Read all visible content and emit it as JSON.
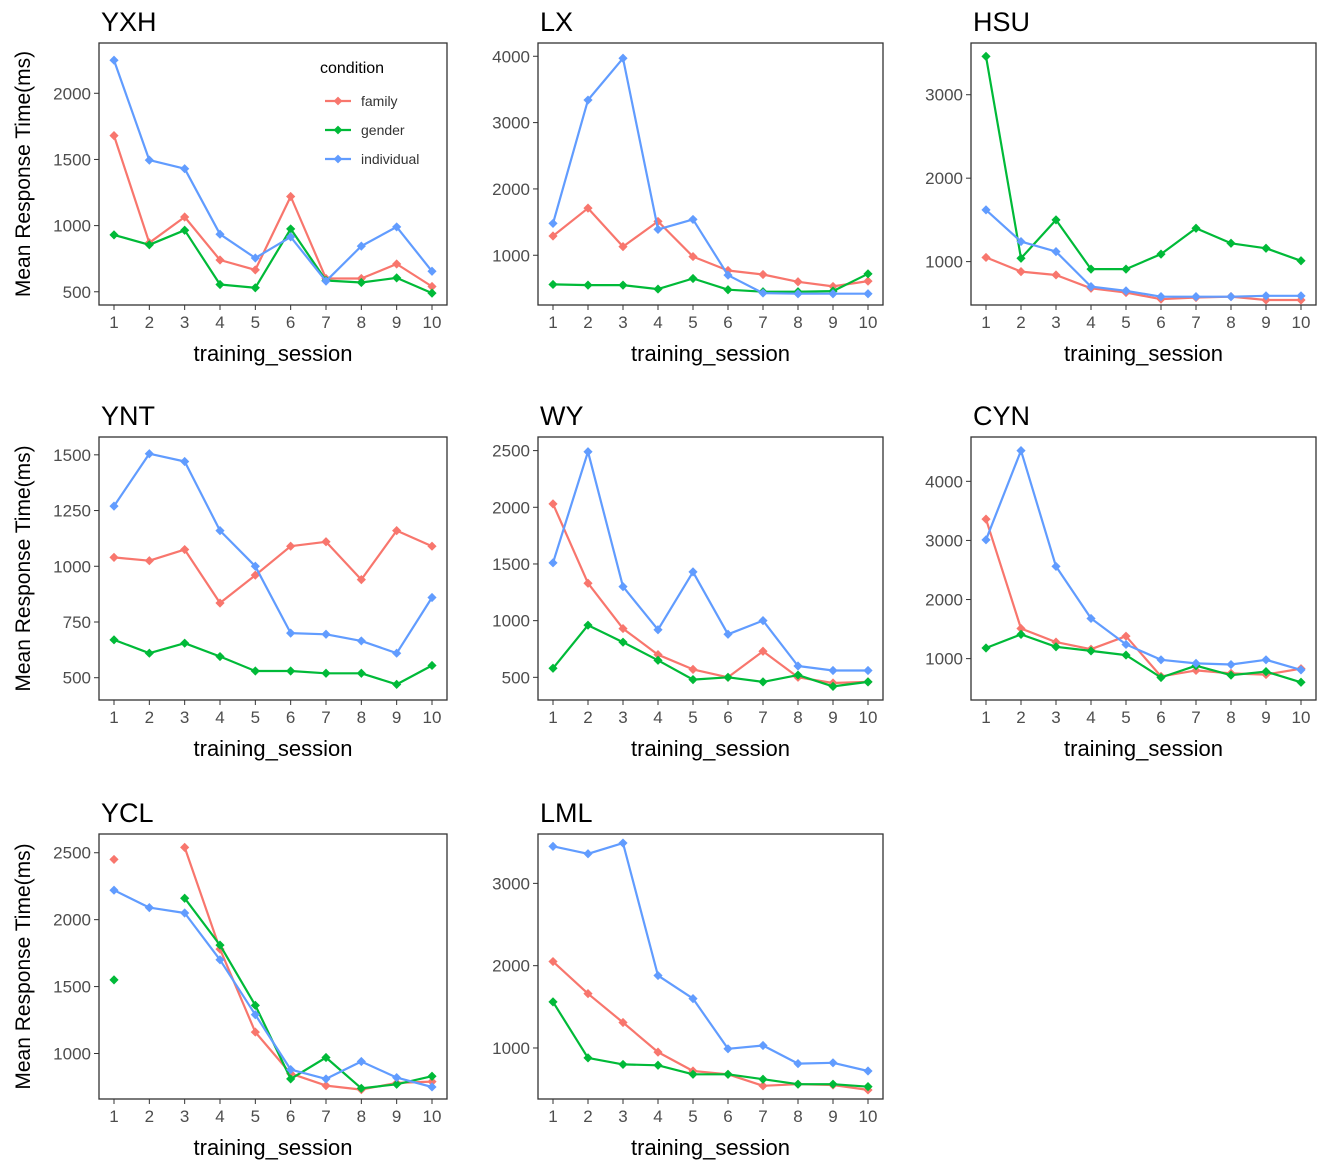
{
  "y_axis_label": "Mean Response Time(ms)",
  "legend": {
    "title": "condition",
    "items": [
      {
        "name": "family",
        "color": "#F8766D"
      },
      {
        "name": "gender",
        "color": "#00BA38"
      },
      {
        "name": "individual",
        "color": "#619CFF"
      }
    ]
  },
  "chart_data": [
    {
      "type": "line",
      "title": "YXH",
      "xlabel": "training_session",
      "ylabel": "Mean Response Time(ms)",
      "x": [
        1,
        2,
        3,
        4,
        5,
        6,
        7,
        8,
        9,
        10
      ],
      "ylim": [
        400,
        2380
      ],
      "yticks": [
        500,
        1000,
        1500,
        2000
      ],
      "series": [
        {
          "name": "family",
          "values": [
            1680,
            870,
            1065,
            740,
            665,
            1220,
            600,
            600,
            710,
            540
          ]
        },
        {
          "name": "gender",
          "values": [
            930,
            855,
            965,
            555,
            530,
            975,
            585,
            570,
            605,
            490
          ]
        },
        {
          "name": "individual",
          "values": [
            2250,
            1495,
            1430,
            935,
            755,
            915,
            580,
            845,
            990,
            655
          ]
        }
      ]
    },
    {
      "type": "line",
      "title": "LX",
      "xlabel": "training_session",
      "ylabel": "",
      "x": [
        1,
        2,
        3,
        4,
        5,
        6,
        7,
        8,
        9,
        10
      ],
      "ylim": [
        250,
        4200
      ],
      "yticks": [
        1000,
        2000,
        3000,
        4000
      ],
      "series": [
        {
          "name": "family",
          "values": [
            1290,
            1710,
            1130,
            1510,
            980,
            770,
            710,
            600,
            530,
            610
          ]
        },
        {
          "name": "gender",
          "values": [
            560,
            550,
            550,
            490,
            650,
            480,
            450,
            450,
            460,
            720
          ]
        },
        {
          "name": "individual",
          "values": [
            1480,
            3340,
            3970,
            1390,
            1540,
            700,
            430,
            420,
            420,
            420
          ]
        }
      ]
    },
    {
      "type": "line",
      "title": "HSU",
      "xlabel": "training_session",
      "ylabel": "",
      "x": [
        1,
        2,
        3,
        4,
        5,
        6,
        7,
        8,
        9,
        10
      ],
      "ylim": [
        480,
        3620
      ],
      "yticks": [
        1000,
        2000,
        3000
      ],
      "series": [
        {
          "name": "family",
          "values": [
            1050,
            880,
            840,
            680,
            630,
            550,
            570,
            580,
            540,
            540
          ]
        },
        {
          "name": "gender",
          "values": [
            3460,
            1040,
            1500,
            910,
            910,
            1090,
            1400,
            1220,
            1160,
            1010
          ]
        },
        {
          "name": "individual",
          "values": [
            1620,
            1240,
            1120,
            700,
            650,
            580,
            580,
            580,
            590,
            590
          ]
        }
      ]
    },
    {
      "type": "line",
      "title": "YNT",
      "xlabel": "training_session",
      "ylabel": "Mean Response Time(ms)",
      "x": [
        1,
        2,
        3,
        4,
        5,
        6,
        7,
        8,
        9,
        10
      ],
      "ylim": [
        400,
        1580
      ],
      "yticks": [
        500,
        750,
        1000,
        1250,
        1500
      ],
      "series": [
        {
          "name": "family",
          "values": [
            1040,
            1025,
            1075,
            835,
            960,
            1090,
            1110,
            940,
            1160,
            1090
          ]
        },
        {
          "name": "gender",
          "values": [
            670,
            610,
            655,
            595,
            530,
            530,
            520,
            520,
            470,
            555
          ]
        },
        {
          "name": "individual",
          "values": [
            1270,
            1505,
            1470,
            1160,
            1000,
            700,
            695,
            665,
            610,
            860
          ]
        }
      ]
    },
    {
      "type": "line",
      "title": "WY",
      "xlabel": "training_session",
      "ylabel": "",
      "x": [
        1,
        2,
        3,
        4,
        5,
        6,
        7,
        8,
        9,
        10
      ],
      "ylim": [
        300,
        2620
      ],
      "yticks": [
        500,
        1000,
        1500,
        2000,
        2500
      ],
      "series": [
        {
          "name": "family",
          "values": [
            2030,
            1330,
            930,
            700,
            570,
            500,
            730,
            500,
            450,
            460
          ]
        },
        {
          "name": "gender",
          "values": [
            580,
            960,
            810,
            650,
            480,
            500,
            460,
            520,
            420,
            460
          ]
        },
        {
          "name": "individual",
          "values": [
            1510,
            2490,
            1300,
            920,
            1430,
            880,
            1000,
            600,
            560,
            560
          ]
        }
      ]
    },
    {
      "type": "line",
      "title": "CYN",
      "xlabel": "training_session",
      "ylabel": "",
      "x": [
        1,
        2,
        3,
        4,
        5,
        6,
        7,
        8,
        9,
        10
      ],
      "ylim": [
        300,
        4750
      ],
      "yticks": [
        1000,
        2000,
        3000,
        4000
      ],
      "series": [
        {
          "name": "family",
          "values": [
            3360,
            1510,
            1280,
            1160,
            1380,
            700,
            800,
            750,
            730,
            830
          ]
        },
        {
          "name": "gender",
          "values": [
            1180,
            1410,
            1200,
            1130,
            1060,
            680,
            880,
            720,
            780,
            600
          ]
        },
        {
          "name": "individual",
          "values": [
            3010,
            4520,
            2560,
            1680,
            1240,
            980,
            920,
            900,
            980,
            810
          ]
        }
      ]
    },
    {
      "type": "line",
      "title": "YCL",
      "xlabel": "training_session",
      "ylabel": "Mean Response Time(ms)",
      "x": [
        1,
        2,
        3,
        4,
        5,
        6,
        7,
        8,
        9,
        10
      ],
      "ylim": [
        660,
        2640
      ],
      "yticks": [
        1000,
        1500,
        2000,
        2500
      ],
      "series": [
        {
          "name": "family",
          "values": [
            2450,
            null,
            2540,
            1780,
            1160,
            850,
            760,
            730,
            780,
            790
          ]
        },
        {
          "name": "gender",
          "values": [
            1550,
            null,
            2160,
            1810,
            1360,
            810,
            970,
            740,
            770,
            830
          ]
        },
        {
          "name": "individual",
          "values": [
            2220,
            2090,
            2050,
            1700,
            1290,
            880,
            810,
            940,
            820,
            750
          ]
        }
      ]
    },
    {
      "type": "line",
      "title": "LML",
      "xlabel": "training_session",
      "ylabel": "",
      "x": [
        1,
        2,
        3,
        4,
        5,
        6,
        7,
        8,
        9,
        10
      ],
      "ylim": [
        380,
        3600
      ],
      "yticks": [
        1000,
        2000,
        3000
      ],
      "series": [
        {
          "name": "family",
          "values": [
            2050,
            1660,
            1310,
            950,
            720,
            680,
            540,
            560,
            550,
            490
          ]
        },
        {
          "name": "gender",
          "values": [
            1560,
            880,
            800,
            790,
            680,
            680,
            620,
            560,
            560,
            530
          ]
        },
        {
          "name": "individual",
          "values": [
            3450,
            3360,
            3490,
            1880,
            1600,
            990,
            1030,
            810,
            820,
            720
          ]
        }
      ]
    }
  ]
}
